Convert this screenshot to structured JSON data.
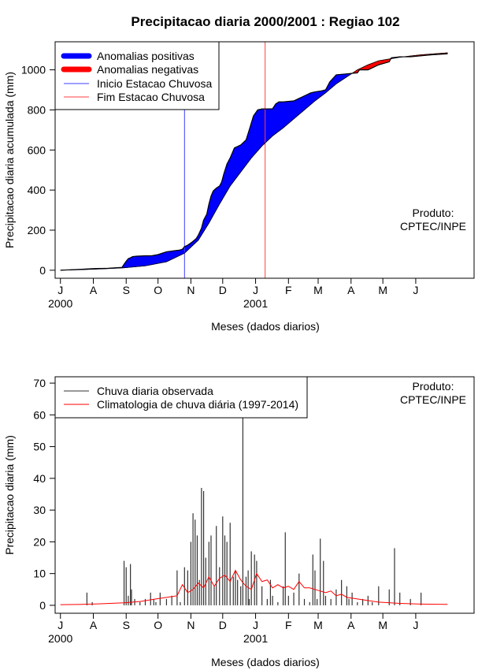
{
  "colors": {
    "positive": "#0000ff",
    "negative": "#ff0000",
    "onset": "#3f3fff",
    "end": "#ff4040",
    "observed": "#333333",
    "climatology": "#ff0000"
  },
  "chart_data": [
    {
      "type": "area",
      "title": "Precipitacao diaria 2000/2001 : Regiao 102",
      "xlabel": "Meses (dados diarios)",
      "ylabel": "Precipitacao diaria acumulada (mm)",
      "xlim_days": [
        -5,
        390
      ],
      "ylim": [
        -40,
        1140
      ],
      "yticks": [
        0,
        200,
        400,
        600,
        800,
        1000
      ],
      "month_ticks": {
        "days": [
          0,
          31,
          62,
          92,
          123,
          153,
          184,
          215,
          243,
          274,
          304,
          335
        ],
        "labels": [
          "J",
          "A",
          "S",
          "O",
          "N",
          "D",
          "J",
          "F",
          "M",
          "A",
          "M",
          "J"
        ]
      },
      "year_labels": [
        {
          "text": "2000",
          "day": 0
        },
        {
          "text": "2001",
          "day": 184
        }
      ],
      "legend": {
        "placement": "top-left",
        "items": [
          "Anomalias positivas",
          "Anomalias negativas",
          "Inicio Estacao Chuvosa",
          "Fim Estacao Chuvosa"
        ]
      },
      "annotation": [
        "Produto:",
        "CPTEC/INPE"
      ],
      "onset_day": 117,
      "end_day": 193,
      "observed_cumulative": {
        "days": [
          0,
          20,
          30,
          45,
          58,
          60,
          62,
          64,
          66,
          68,
          72,
          80,
          86,
          92,
          100,
          108,
          112,
          115,
          117,
          120,
          124,
          128,
          130,
          133,
          135,
          138,
          140,
          142,
          144,
          147,
          150,
          152,
          154,
          157,
          160,
          164,
          170,
          175,
          178,
          182,
          186,
          190,
          195,
          200,
          203,
          206,
          210,
          220,
          226,
          230,
          236,
          240,
          246,
          250,
          254,
          260,
          270,
          280,
          282,
          290,
          300,
          310,
          312,
          320,
          330,
          340,
          350,
          365
        ],
        "values": [
          0,
          5,
          8,
          10,
          14,
          30,
          45,
          58,
          62,
          68,
          70,
          72,
          72,
          78,
          92,
          98,
          100,
          105,
          118,
          125,
          140,
          158,
          175,
          210,
          250,
          280,
          330,
          370,
          395,
          410,
          420,
          440,
          480,
          530,
          560,
          610,
          625,
          650,
          700,
          770,
          800,
          805,
          805,
          806,
          830,
          840,
          840,
          845,
          860,
          870,
          885,
          890,
          895,
          900,
          940,
          975,
          980,
          985,
          1000,
          1000,
          1025,
          1040,
          1060,
          1065,
          1065,
          1070,
          1075,
          1080
        ]
      },
      "climatology_cumulative": {
        "days": [
          0,
          20,
          40,
          60,
          80,
          100,
          117,
          130,
          140,
          150,
          160,
          170,
          180,
          190,
          200,
          210,
          220,
          230,
          240,
          250,
          260,
          270,
          280,
          290,
          300,
          320,
          340,
          365
        ],
        "values": [
          0,
          3,
          7,
          12,
          22,
          42,
          85,
          150,
          235,
          330,
          420,
          490,
          560,
          620,
          670,
          710,
          755,
          800,
          845,
          885,
          930,
          965,
          1000,
          1025,
          1045,
          1063,
          1075,
          1085
        ]
      }
    },
    {
      "type": "bar",
      "xlabel": "Meses (dados diarios)",
      "ylabel": "Precipitacao diaria (mm)",
      "xlim_days": [
        -5,
        390
      ],
      "ylim": [
        -2.5,
        72
      ],
      "yticks": [
        0,
        10,
        20,
        30,
        40,
        50,
        60,
        70
      ],
      "month_ticks": {
        "days": [
          0,
          31,
          62,
          92,
          123,
          153,
          184,
          215,
          243,
          274,
          304,
          335
        ],
        "labels": [
          "J",
          "A",
          "S",
          "O",
          "N",
          "D",
          "J",
          "F",
          "M",
          "A",
          "M",
          "J"
        ]
      },
      "year_labels": [
        {
          "text": "2000",
          "day": 0
        },
        {
          "text": "2001",
          "day": 184
        }
      ],
      "legend": {
        "placement": "top-left",
        "items": [
          "Chuva diaria observada",
          "Climatologia de chuva diária (1997-2014)"
        ]
      },
      "annotation": [
        "Produto:",
        "CPTEC/INPE"
      ],
      "observed_daily": {
        "days": [
          25,
          30,
          60,
          62,
          64,
          66,
          67,
          70,
          75,
          80,
          85,
          88,
          90,
          94,
          100,
          105,
          110,
          113,
          117,
          120,
          123,
          125,
          127,
          129,
          131,
          133,
          135,
          137,
          140,
          142,
          145,
          147,
          150,
          153,
          155,
          157,
          160,
          163,
          165,
          167,
          170,
          172,
          175,
          177,
          178,
          180,
          183,
          185,
          190,
          195,
          198,
          200,
          205,
          210,
          212,
          215,
          220,
          225,
          230,
          235,
          238,
          240,
          242,
          245,
          248,
          250,
          255,
          260,
          265,
          270,
          272,
          275,
          280,
          285,
          290,
          294,
          300,
          310,
          315,
          320,
          330,
          340
        ],
        "values": [
          4,
          1,
          14,
          12,
          3,
          13,
          5,
          2,
          1,
          2,
          4,
          2,
          1,
          4,
          2,
          3,
          11,
          1,
          12,
          11,
          20,
          29,
          27,
          22,
          8,
          37,
          36,
          15,
          20,
          22,
          6,
          25,
          12,
          28,
          22,
          20,
          26,
          9,
          11,
          8,
          6,
          59,
          9,
          11,
          2,
          17,
          16,
          14,
          6,
          2,
          8,
          3,
          1,
          6,
          23,
          3,
          4,
          10,
          2,
          1,
          16,
          11,
          2,
          21,
          14,
          3,
          2,
          5,
          8,
          6,
          2,
          4,
          1,
          2,
          3,
          1,
          6,
          5,
          18,
          4,
          2,
          4
        ]
      },
      "climatology_daily": {
        "days": [
          0,
          20,
          40,
          60,
          75,
          90,
          100,
          110,
          115,
          120,
          125,
          130,
          135,
          140,
          145,
          150,
          155,
          160,
          165,
          170,
          175,
          180,
          185,
          190,
          195,
          200,
          205,
          210,
          215,
          220,
          225,
          230,
          235,
          240,
          245,
          250,
          255,
          260,
          265,
          270,
          280,
          290,
          300,
          320,
          340,
          365
        ],
        "values": [
          0.2,
          0.3,
          0.5,
          0.8,
          1.2,
          2,
          2.5,
          3,
          6.5,
          4,
          5,
          7,
          5.5,
          9,
          6,
          8.5,
          9.5,
          7.5,
          11,
          8,
          6,
          5,
          10,
          7.5,
          8,
          5.5,
          6.5,
          5.5,
          6,
          5,
          7.5,
          5.5,
          5.5,
          5,
          4.5,
          4,
          4.5,
          3,
          3.5,
          2.5,
          2,
          1.5,
          1,
          0.6,
          0.4,
          0.3
        ]
      }
    }
  ]
}
